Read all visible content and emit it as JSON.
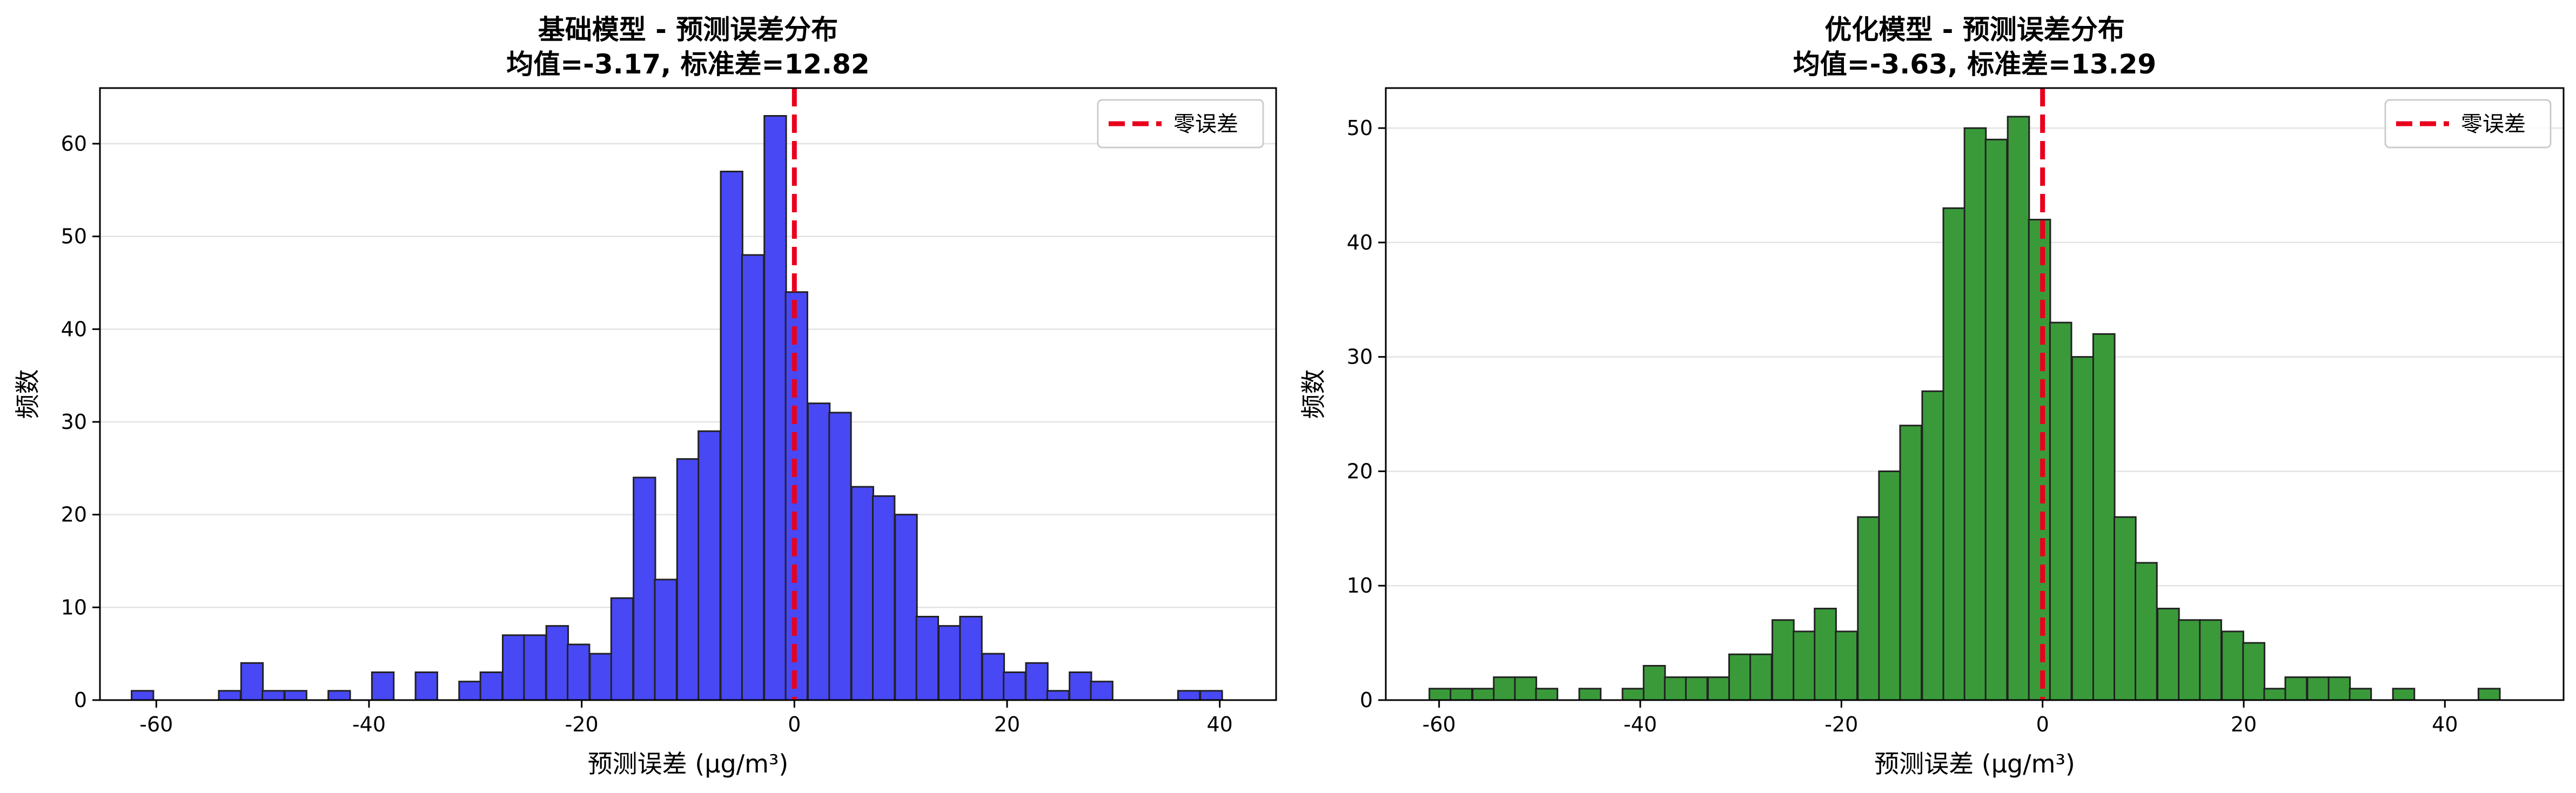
{
  "chart_data": [
    {
      "type": "bar",
      "title": "基础模型 - 预测误差分布",
      "subtitle": "均值=-3.17, 标准差=12.82",
      "xlabel": "预测误差 (μg/m³)",
      "ylabel": "频数",
      "xlim": [
        -65.3,
        45.3
      ],
      "ylim": [
        0,
        66
      ],
      "xticks": [
        -60,
        -40,
        -20,
        0,
        20,
        40
      ],
      "yticks": [
        0,
        10,
        20,
        30,
        40,
        50,
        60
      ],
      "bar_color": "#4848f5",
      "grid": "y",
      "legend": {
        "label": "零误差",
        "position": "top-right",
        "color": "#e8001c"
      },
      "ref_line_x": 0,
      "bin_width": 2.05,
      "bins": [
        {
          "x": -61.3,
          "count": 1
        },
        {
          "x": -59.2,
          "count": 0
        },
        {
          "x": -57.2,
          "count": 0
        },
        {
          "x": -55.1,
          "count": 0
        },
        {
          "x": -53.1,
          "count": 1
        },
        {
          "x": -51.0,
          "count": 4
        },
        {
          "x": -49.0,
          "count": 1
        },
        {
          "x": -46.9,
          "count": 1
        },
        {
          "x": -44.9,
          "count": 0
        },
        {
          "x": -42.8,
          "count": 1
        },
        {
          "x": -40.8,
          "count": 0
        },
        {
          "x": -38.7,
          "count": 3
        },
        {
          "x": -36.7,
          "count": 0
        },
        {
          "x": -34.6,
          "count": 3
        },
        {
          "x": -32.6,
          "count": 0
        },
        {
          "x": -30.5,
          "count": 2
        },
        {
          "x": -28.5,
          "count": 3
        },
        {
          "x": -26.4,
          "count": 7
        },
        {
          "x": -24.4,
          "count": 7
        },
        {
          "x": -22.3,
          "count": 8
        },
        {
          "x": -20.3,
          "count": 6
        },
        {
          "x": -18.2,
          "count": 5
        },
        {
          "x": -16.2,
          "count": 11
        },
        {
          "x": -14.1,
          "count": 24
        },
        {
          "x": -12.1,
          "count": 13
        },
        {
          "x": -10.0,
          "count": 26
        },
        {
          "x": -8.0,
          "count": 29
        },
        {
          "x": -5.9,
          "count": 57
        },
        {
          "x": -3.9,
          "count": 48
        },
        {
          "x": -1.8,
          "count": 63
        },
        {
          "x": 0.2,
          "count": 44
        },
        {
          "x": 2.3,
          "count": 32
        },
        {
          "x": 4.3,
          "count": 31
        },
        {
          "x": 6.4,
          "count": 23
        },
        {
          "x": 8.4,
          "count": 22
        },
        {
          "x": 10.5,
          "count": 20
        },
        {
          "x": 12.5,
          "count": 9
        },
        {
          "x": 14.6,
          "count": 8
        },
        {
          "x": 16.6,
          "count": 9
        },
        {
          "x": 18.7,
          "count": 5
        },
        {
          "x": 20.7,
          "count": 3
        },
        {
          "x": 22.8,
          "count": 4
        },
        {
          "x": 24.8,
          "count": 1
        },
        {
          "x": 26.9,
          "count": 3
        },
        {
          "x": 28.9,
          "count": 2
        },
        {
          "x": 31.0,
          "count": 0
        },
        {
          "x": 33.0,
          "count": 0
        },
        {
          "x": 35.1,
          "count": 0
        },
        {
          "x": 37.1,
          "count": 1
        },
        {
          "x": 39.2,
          "count": 1
        }
      ]
    },
    {
      "type": "bar",
      "title": "优化模型 - 预测误差分布",
      "subtitle": "均值=-3.63, 标准差=13.29",
      "xlabel": "预测误差 (μg/m³)",
      "ylabel": "频数",
      "xlim": [
        -65.3,
        51.8
      ],
      "ylim": [
        0,
        53.5
      ],
      "xticks": [
        -60,
        -40,
        -20,
        0,
        20,
        40
      ],
      "yticks": [
        0,
        10,
        20,
        30,
        40,
        50
      ],
      "bar_color": "#3a9a3a",
      "grid": "y",
      "legend": {
        "label": "零误差",
        "position": "top-right",
        "color": "#e8001c"
      },
      "ref_line_x": 0,
      "bin_width": 2.13,
      "bins": [
        {
          "x": -59.9,
          "count": 1
        },
        {
          "x": -57.8,
          "count": 1
        },
        {
          "x": -55.6,
          "count": 1
        },
        {
          "x": -53.5,
          "count": 2
        },
        {
          "x": -51.4,
          "count": 2
        },
        {
          "x": -49.3,
          "count": 1
        },
        {
          "x": -47.1,
          "count": 0
        },
        {
          "x": -45.0,
          "count": 1
        },
        {
          "x": -42.9,
          "count": 0
        },
        {
          "x": -40.7,
          "count": 1
        },
        {
          "x": -38.6,
          "count": 3
        },
        {
          "x": -36.5,
          "count": 2
        },
        {
          "x": -34.4,
          "count": 2
        },
        {
          "x": -32.2,
          "count": 2
        },
        {
          "x": -30.1,
          "count": 4
        },
        {
          "x": -28.0,
          "count": 4
        },
        {
          "x": -25.8,
          "count": 7
        },
        {
          "x": -23.7,
          "count": 6
        },
        {
          "x": -21.6,
          "count": 8
        },
        {
          "x": -19.5,
          "count": 6
        },
        {
          "x": -17.3,
          "count": 16
        },
        {
          "x": -15.2,
          "count": 20
        },
        {
          "x": -13.1,
          "count": 24
        },
        {
          "x": -10.9,
          "count": 27
        },
        {
          "x": -8.8,
          "count": 43
        },
        {
          "x": -6.7,
          "count": 50
        },
        {
          "x": -4.6,
          "count": 49
        },
        {
          "x": -2.4,
          "count": 51
        },
        {
          "x": -0.3,
          "count": 42
        },
        {
          "x": 1.8,
          "count": 33
        },
        {
          "x": 4.0,
          "count": 30
        },
        {
          "x": 6.1,
          "count": 32
        },
        {
          "x": 8.2,
          "count": 16
        },
        {
          "x": 10.3,
          "count": 12
        },
        {
          "x": 12.5,
          "count": 8
        },
        {
          "x": 14.6,
          "count": 7
        },
        {
          "x": 16.7,
          "count": 7
        },
        {
          "x": 18.9,
          "count": 6
        },
        {
          "x": 21.0,
          "count": 5
        },
        {
          "x": 23.1,
          "count": 1
        },
        {
          "x": 25.2,
          "count": 2
        },
        {
          "x": 27.4,
          "count": 2
        },
        {
          "x": 29.5,
          "count": 2
        },
        {
          "x": 31.6,
          "count": 1
        },
        {
          "x": 33.8,
          "count": 0
        },
        {
          "x": 35.9,
          "count": 1
        },
        {
          "x": 38.0,
          "count": 0
        },
        {
          "x": 40.1,
          "count": 0
        },
        {
          "x": 42.3,
          "count": 0
        },
        {
          "x": 44.4,
          "count": 1
        }
      ]
    }
  ]
}
